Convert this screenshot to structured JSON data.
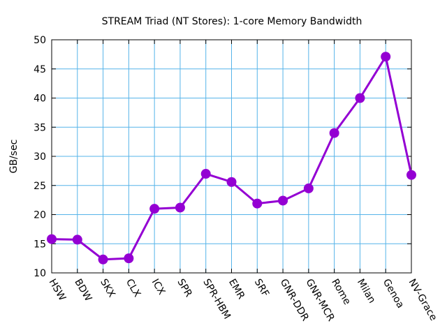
{
  "chart_data": {
    "type": "line",
    "title": "STREAM Triad (NT Stores): 1-core Memory Bandwidth",
    "xlabel": "",
    "ylabel": "GB/sec",
    "categories": [
      "HSW",
      "BDW",
      "SKX",
      "CLX",
      "ICX",
      "SPR",
      "SPR-HBM",
      "EMR",
      "SRF",
      "GNR-DDR",
      "GNR-MCR",
      "Rome",
      "Milan",
      "Genoa",
      "NV-Grace"
    ],
    "series": [
      {
        "values": [
          15.8,
          15.7,
          12.3,
          12.5,
          21.0,
          21.2,
          27.0,
          25.6,
          21.9,
          22.4,
          24.5,
          34.0,
          40.0,
          47.1,
          26.8
        ],
        "color": "#9400D3"
      }
    ],
    "ylim": [
      10,
      50
    ],
    "yticks": [
      10,
      15,
      20,
      25,
      30,
      35,
      40,
      45,
      50
    ],
    "grid": true,
    "grid_color": "#56B4E9",
    "legend": "none"
  }
}
